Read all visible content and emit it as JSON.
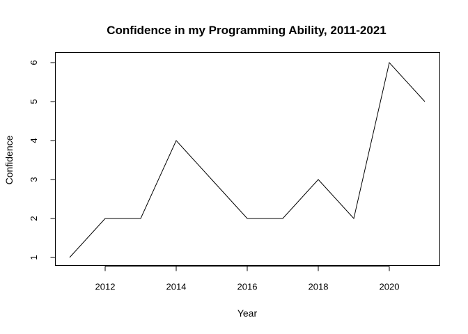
{
  "chart_data": {
    "type": "line",
    "title": "Confidence in my Programming Ability, 2011-2021",
    "xlabel": "Year",
    "ylabel": "Confidence",
    "x": [
      2011,
      2012,
      2013,
      2014,
      2015,
      2016,
      2017,
      2018,
      2019,
      2020,
      2021
    ],
    "y": [
      1,
      2,
      2,
      4,
      3,
      2,
      2,
      3,
      2,
      6,
      5
    ],
    "xlim": [
      2011,
      2021
    ],
    "ylim": [
      1,
      6
    ],
    "x_ticks": [
      2012,
      2014,
      2016,
      2018,
      2020
    ],
    "y_ticks": [
      1,
      2,
      3,
      4,
      5,
      6
    ],
    "grid": false,
    "legend": false,
    "line_color": "#000000"
  }
}
